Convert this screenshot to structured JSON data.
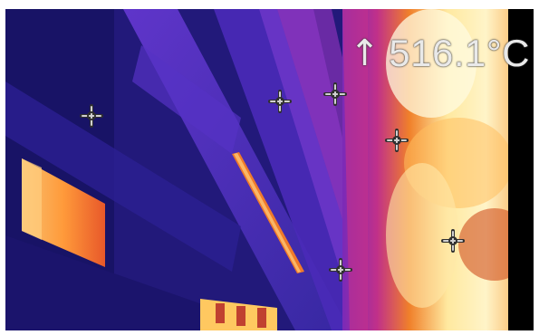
{
  "viewer": {
    "readout": {
      "arrow_glyph": "↑",
      "temperature": "516.1°C"
    }
  },
  "icons": {
    "max-arrow": "arrow-up-icon",
    "spot": "crosshair-icon"
  },
  "colors": {
    "cold": "#1a1560",
    "mid_purple": "#5a2fc8",
    "magenta": "#b02aa8",
    "orange": "#f07a20",
    "hot": "#fff2b0",
    "marker_fill": "#cfcfcf",
    "marker_outline": "#303030"
  },
  "markers": [
    {
      "label": "spot-1"
    },
    {
      "label": "spot-2"
    },
    {
      "label": "spot-3"
    },
    {
      "label": "spot-4"
    },
    {
      "label": "spot-5"
    },
    {
      "label": "spot-6"
    }
  ]
}
